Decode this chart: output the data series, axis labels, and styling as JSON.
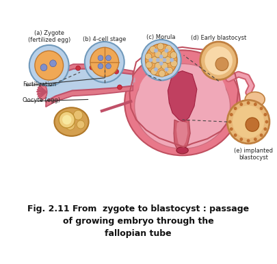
{
  "title_line1": "Fig. 2.11 From  zygote to blastocyst : passage",
  "title_line2": "of growing embryo through the",
  "title_line3": "fallopian tube",
  "labels": {
    "a": "(a) Zygote\n(fertilized egg)",
    "b": "(b) 4-cell stage",
    "c": "(c) Morula",
    "d": "(d) Early blastocyst",
    "e": "(e) implanted\nblastocyst",
    "fertilization": "Fertilization",
    "oocyte": "Oocyte (egg)"
  },
  "colors": {
    "background": "#ffffff",
    "text_color": "#222222",
    "title_color": "#111111"
  },
  "figsize": [
    4.06,
    3.86
  ],
  "dpi": 100
}
